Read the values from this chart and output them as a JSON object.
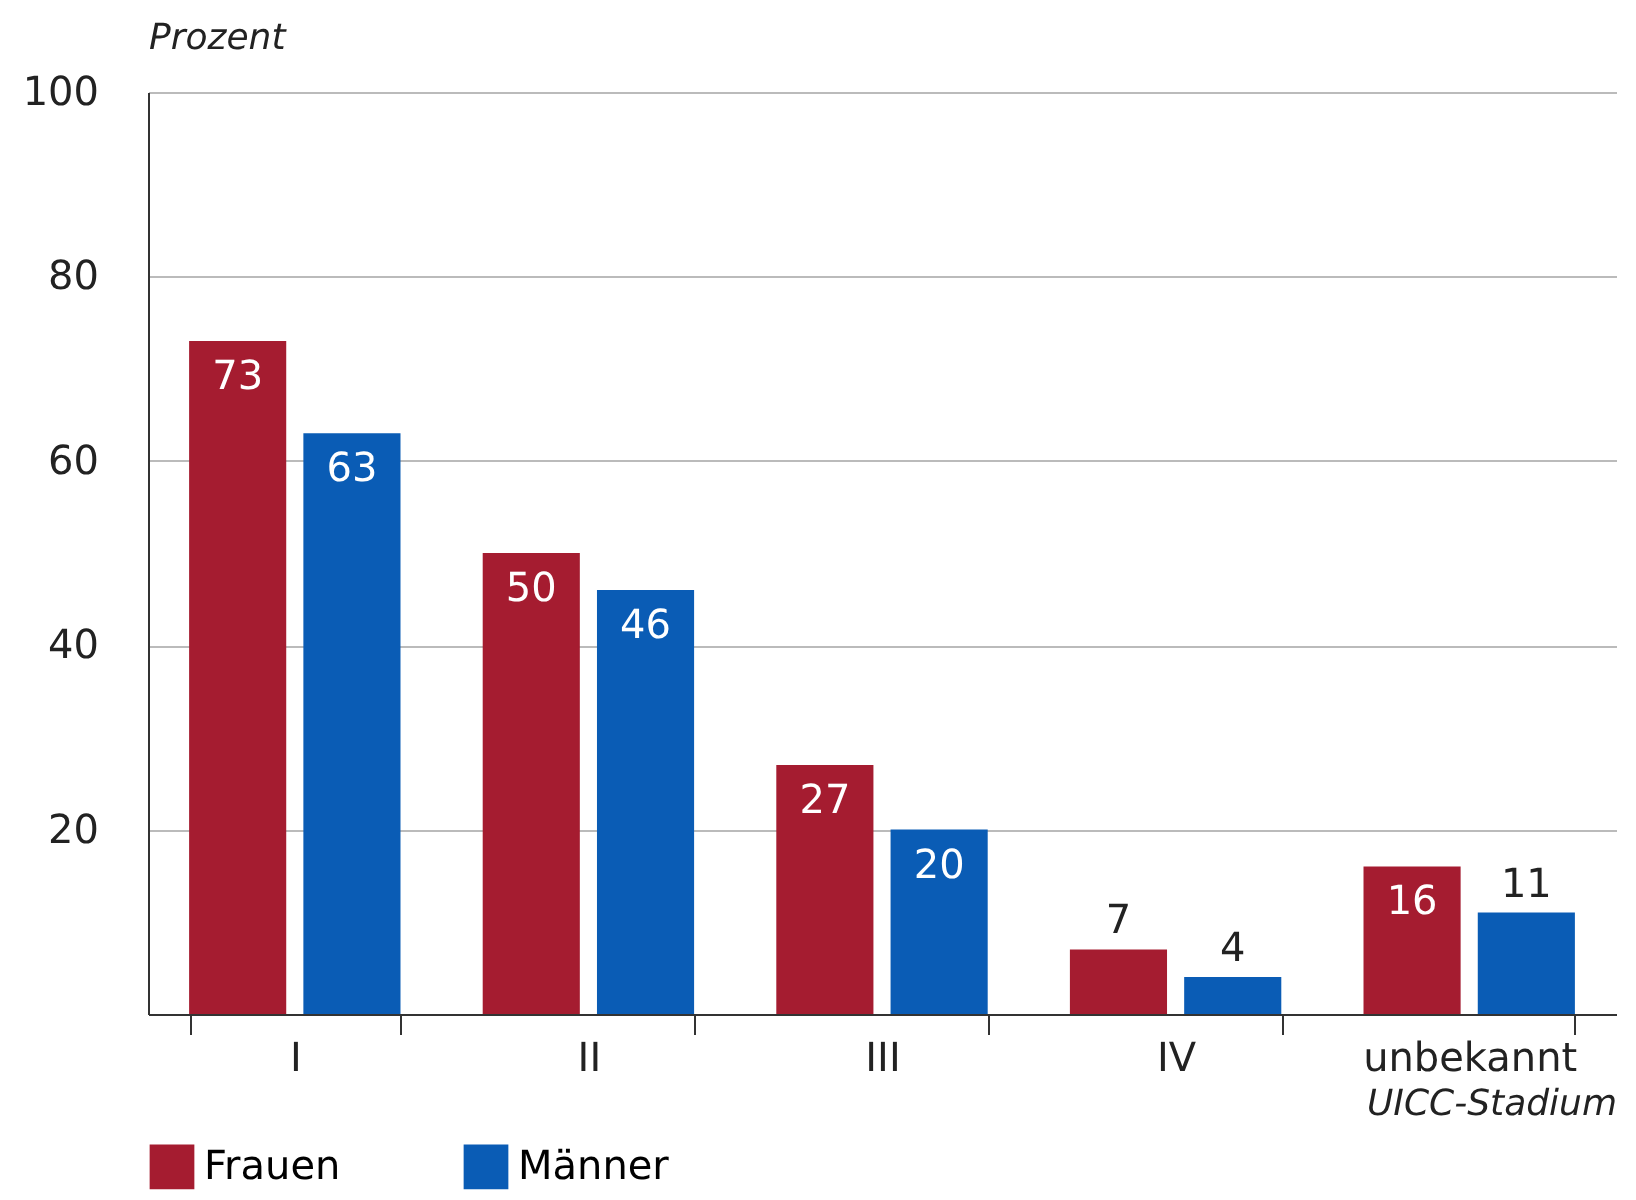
{
  "chart_data": {
    "type": "bar",
    "categories": [
      "I",
      "II",
      "III",
      "IV",
      "unbekannt"
    ],
    "series": [
      {
        "name": "Frauen",
        "color": "#a51c30",
        "values": [
          73,
          50,
          27,
          7,
          16
        ]
      },
      {
        "name": "Männer",
        "color": "#0a5cb5",
        "values": [
          63,
          46,
          20,
          4,
          11
        ]
      }
    ],
    "ylabel": "Prozent",
    "xlabel": "UICC-Stadium",
    "ylim": [
      0,
      100
    ],
    "yticks": [
      {
        "value": 0,
        "label": null
      },
      20,
      40,
      60,
      80,
      100
    ],
    "grid": "y",
    "legend": "bottom",
    "data_labels": true
  }
}
